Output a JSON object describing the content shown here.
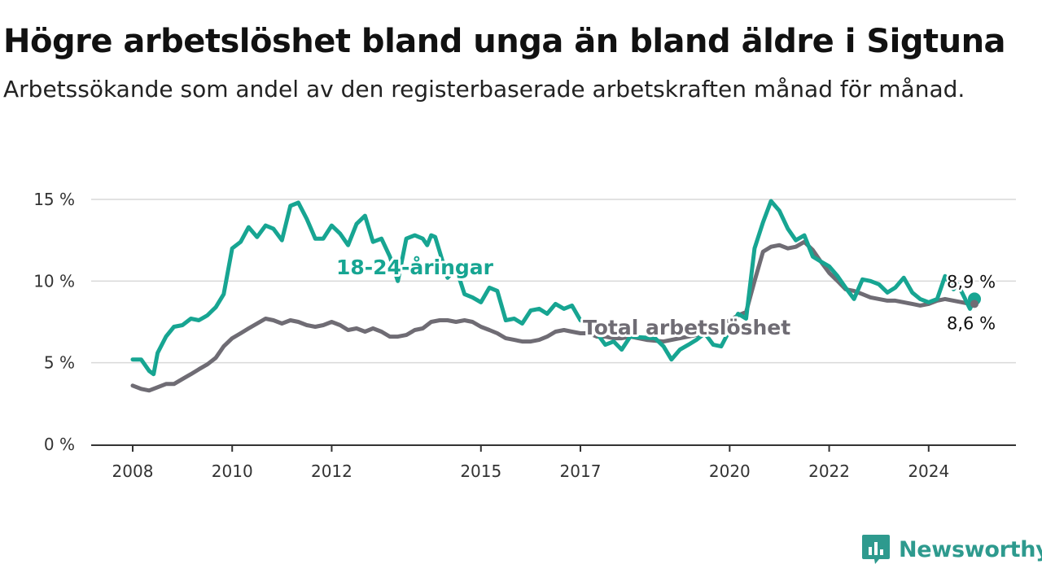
{
  "header": {
    "title": "Högre arbetslöshet bland unga än bland äldre i Sigtuna",
    "subtitle": "Arbetssökande som andel av den registerbaserade arbetskraften månad för månad."
  },
  "brand": {
    "name": "Newsworthy",
    "icon": "newsworthy-logo-icon",
    "color": "#2e9a8e"
  },
  "chart_data": {
    "type": "line",
    "title": "Högre arbetslöshet bland unga än bland äldre i Sigtuna",
    "subtitle": "Arbetssökande som andel av den registerbaserade arbetskraften månad för månad.",
    "xlabel": "",
    "ylabel": "",
    "x_range": [
      2008.0,
      2024.92
    ],
    "ylim": [
      0,
      15
    ],
    "y_ticks": [
      {
        "value": 0,
        "label": "0 %"
      },
      {
        "value": 5,
        "label": "5 %"
      },
      {
        "value": 10,
        "label": "10 %"
      },
      {
        "value": 15,
        "label": "15 %"
      }
    ],
    "x_ticks": [
      {
        "value": 2008,
        "label": "2008"
      },
      {
        "value": 2010,
        "label": "2010"
      },
      {
        "value": 2012,
        "label": "2012"
      },
      {
        "value": 2015,
        "label": "2015"
      },
      {
        "value": 2017,
        "label": "2017"
      },
      {
        "value": 2020,
        "label": "2020"
      },
      {
        "value": 2022,
        "label": "2022"
      },
      {
        "value": 2024,
        "label": "2024"
      }
    ],
    "grid": true,
    "legend": "inline labels",
    "series": [
      {
        "name": "18-24-åringar",
        "color": "#17a592",
        "end_label": "8,9 %",
        "points": [
          [
            2008.0,
            5.2
          ],
          [
            2008.17,
            5.2
          ],
          [
            2008.33,
            4.5
          ],
          [
            2008.42,
            4.3
          ],
          [
            2008.5,
            5.6
          ],
          [
            2008.67,
            6.6
          ],
          [
            2008.83,
            7.2
          ],
          [
            2009.0,
            7.3
          ],
          [
            2009.17,
            7.7
          ],
          [
            2009.33,
            7.6
          ],
          [
            2009.5,
            7.9
          ],
          [
            2009.67,
            8.4
          ],
          [
            2009.83,
            9.2
          ],
          [
            2010.0,
            12.0
          ],
          [
            2010.17,
            12.4
          ],
          [
            2010.33,
            13.3
          ],
          [
            2010.5,
            12.7
          ],
          [
            2010.67,
            13.4
          ],
          [
            2010.83,
            13.2
          ],
          [
            2011.0,
            12.5
          ],
          [
            2011.17,
            14.6
          ],
          [
            2011.33,
            14.8
          ],
          [
            2011.5,
            13.8
          ],
          [
            2011.67,
            12.6
          ],
          [
            2011.83,
            12.6
          ],
          [
            2012.0,
            13.4
          ],
          [
            2012.17,
            12.9
          ],
          [
            2012.33,
            12.2
          ],
          [
            2012.5,
            13.5
          ],
          [
            2012.67,
            14.0
          ],
          [
            2012.83,
            12.4
          ],
          [
            2013.0,
            12.6
          ],
          [
            2013.17,
            11.5
          ],
          [
            2013.33,
            10.0
          ],
          [
            2013.5,
            12.6
          ],
          [
            2013.67,
            12.8
          ],
          [
            2013.83,
            12.6
          ],
          [
            2013.92,
            12.2
          ],
          [
            2014.0,
            12.8
          ],
          [
            2014.08,
            12.7
          ],
          [
            2014.17,
            11.8
          ],
          [
            2014.33,
            10.2
          ],
          [
            2014.5,
            10.8
          ],
          [
            2014.67,
            9.2
          ],
          [
            2014.83,
            9.0
          ],
          [
            2015.0,
            8.7
          ],
          [
            2015.17,
            9.6
          ],
          [
            2015.33,
            9.4
          ],
          [
            2015.5,
            7.6
          ],
          [
            2015.67,
            7.7
          ],
          [
            2015.83,
            7.4
          ],
          [
            2016.0,
            8.2
          ],
          [
            2016.17,
            8.3
          ],
          [
            2016.33,
            8.0
          ],
          [
            2016.5,
            8.6
          ],
          [
            2016.67,
            8.3
          ],
          [
            2016.83,
            8.5
          ],
          [
            2017.0,
            7.6
          ],
          [
            2017.17,
            7.3
          ],
          [
            2017.33,
            6.8
          ],
          [
            2017.5,
            6.1
          ],
          [
            2017.67,
            6.3
          ],
          [
            2017.83,
            5.8
          ],
          [
            2018.0,
            6.6
          ],
          [
            2018.5,
            6.5
          ],
          [
            2018.67,
            6.0
          ],
          [
            2018.83,
            5.2
          ],
          [
            2019.0,
            5.8
          ],
          [
            2019.17,
            6.1
          ],
          [
            2019.33,
            6.4
          ],
          [
            2019.5,
            6.8
          ],
          [
            2019.67,
            6.1
          ],
          [
            2019.83,
            6.0
          ],
          [
            2020.0,
            7.0
          ],
          [
            2020.17,
            8.0
          ],
          [
            2020.33,
            7.7
          ],
          [
            2020.5,
            12.0
          ],
          [
            2020.67,
            13.6
          ],
          [
            2020.83,
            14.9
          ],
          [
            2021.0,
            14.3
          ],
          [
            2021.17,
            13.2
          ],
          [
            2021.33,
            12.5
          ],
          [
            2021.5,
            12.8
          ],
          [
            2021.67,
            11.5
          ],
          [
            2021.83,
            11.2
          ],
          [
            2022.0,
            10.9
          ],
          [
            2022.17,
            10.3
          ],
          [
            2022.33,
            9.6
          ],
          [
            2022.5,
            8.9
          ],
          [
            2022.67,
            10.1
          ],
          [
            2022.83,
            10.0
          ],
          [
            2023.0,
            9.8
          ],
          [
            2023.17,
            9.3
          ],
          [
            2023.33,
            9.6
          ],
          [
            2023.5,
            10.2
          ],
          [
            2023.67,
            9.3
          ],
          [
            2023.83,
            8.9
          ],
          [
            2024.0,
            8.7
          ],
          [
            2024.17,
            8.9
          ],
          [
            2024.33,
            10.3
          ],
          [
            2024.5,
            9.5
          ],
          [
            2024.58,
            9.8
          ],
          [
            2024.67,
            9.3
          ],
          [
            2024.83,
            8.3
          ],
          [
            2024.92,
            8.9
          ]
        ]
      },
      {
        "name": "Total arbetslöshet",
        "color": "#6f6c74",
        "end_label": "8,6 %",
        "points": [
          [
            2008.0,
            3.6
          ],
          [
            2008.17,
            3.4
          ],
          [
            2008.33,
            3.3
          ],
          [
            2008.5,
            3.5
          ],
          [
            2008.67,
            3.7
          ],
          [
            2008.83,
            3.7
          ],
          [
            2009.0,
            4.0
          ],
          [
            2009.17,
            4.3
          ],
          [
            2009.33,
            4.6
          ],
          [
            2009.5,
            4.9
          ],
          [
            2009.67,
            5.3
          ],
          [
            2009.83,
            6.0
          ],
          [
            2010.0,
            6.5
          ],
          [
            2010.17,
            6.8
          ],
          [
            2010.33,
            7.1
          ],
          [
            2010.5,
            7.4
          ],
          [
            2010.67,
            7.7
          ],
          [
            2010.83,
            7.6
          ],
          [
            2011.0,
            7.4
          ],
          [
            2011.17,
            7.6
          ],
          [
            2011.33,
            7.5
          ],
          [
            2011.5,
            7.3
          ],
          [
            2011.67,
            7.2
          ],
          [
            2011.83,
            7.3
          ],
          [
            2012.0,
            7.5
          ],
          [
            2012.17,
            7.3
          ],
          [
            2012.33,
            7.0
          ],
          [
            2012.5,
            7.1
          ],
          [
            2012.67,
            6.9
          ],
          [
            2012.83,
            7.1
          ],
          [
            2013.0,
            6.9
          ],
          [
            2013.17,
            6.6
          ],
          [
            2013.33,
            6.6
          ],
          [
            2013.5,
            6.7
          ],
          [
            2013.67,
            7.0
          ],
          [
            2013.83,
            7.1
          ],
          [
            2014.0,
            7.5
          ],
          [
            2014.17,
            7.6
          ],
          [
            2014.33,
            7.6
          ],
          [
            2014.5,
            7.5
          ],
          [
            2014.67,
            7.6
          ],
          [
            2014.83,
            7.5
          ],
          [
            2015.0,
            7.2
          ],
          [
            2015.17,
            7.0
          ],
          [
            2015.33,
            6.8
          ],
          [
            2015.5,
            6.5
          ],
          [
            2015.67,
            6.4
          ],
          [
            2015.83,
            6.3
          ],
          [
            2016.0,
            6.3
          ],
          [
            2016.17,
            6.4
          ],
          [
            2016.33,
            6.6
          ],
          [
            2016.5,
            6.9
          ],
          [
            2016.67,
            7.0
          ],
          [
            2016.83,
            6.9
          ],
          [
            2017.0,
            6.8
          ],
          [
            2017.17,
            6.8
          ],
          [
            2017.33,
            6.6
          ],
          [
            2017.5,
            6.6
          ],
          [
            2017.67,
            6.5
          ],
          [
            2017.83,
            6.5
          ],
          [
            2018.0,
            6.6
          ],
          [
            2018.33,
            6.4
          ],
          [
            2018.67,
            6.3
          ],
          [
            2019.0,
            6.5
          ],
          [
            2019.33,
            6.7
          ],
          [
            2019.67,
            7.0
          ],
          [
            2019.83,
            7.3
          ],
          [
            2020.0,
            7.6
          ],
          [
            2020.17,
            7.9
          ],
          [
            2020.33,
            8.1
          ],
          [
            2020.5,
            10.0
          ],
          [
            2020.67,
            11.8
          ],
          [
            2020.83,
            12.1
          ],
          [
            2021.0,
            12.2
          ],
          [
            2021.17,
            12.0
          ],
          [
            2021.33,
            12.1
          ],
          [
            2021.5,
            12.4
          ],
          [
            2021.67,
            11.9
          ],
          [
            2021.83,
            11.2
          ],
          [
            2022.0,
            10.5
          ],
          [
            2022.17,
            10.0
          ],
          [
            2022.33,
            9.5
          ],
          [
            2022.5,
            9.4
          ],
          [
            2022.67,
            9.2
          ],
          [
            2022.83,
            9.0
          ],
          [
            2023.0,
            8.9
          ],
          [
            2023.17,
            8.8
          ],
          [
            2023.33,
            8.8
          ],
          [
            2023.5,
            8.7
          ],
          [
            2023.67,
            8.6
          ],
          [
            2023.83,
            8.5
          ],
          [
            2024.0,
            8.6
          ],
          [
            2024.17,
            8.8
          ],
          [
            2024.33,
            8.9
          ],
          [
            2024.5,
            8.8
          ],
          [
            2024.67,
            8.7
          ],
          [
            2024.83,
            8.6
          ],
          [
            2024.92,
            8.6
          ]
        ]
      }
    ],
    "annotations": [
      {
        "text": "18-24-åringar",
        "series": 0
      },
      {
        "text": "Total arbetslöshet",
        "series": 1
      }
    ]
  }
}
